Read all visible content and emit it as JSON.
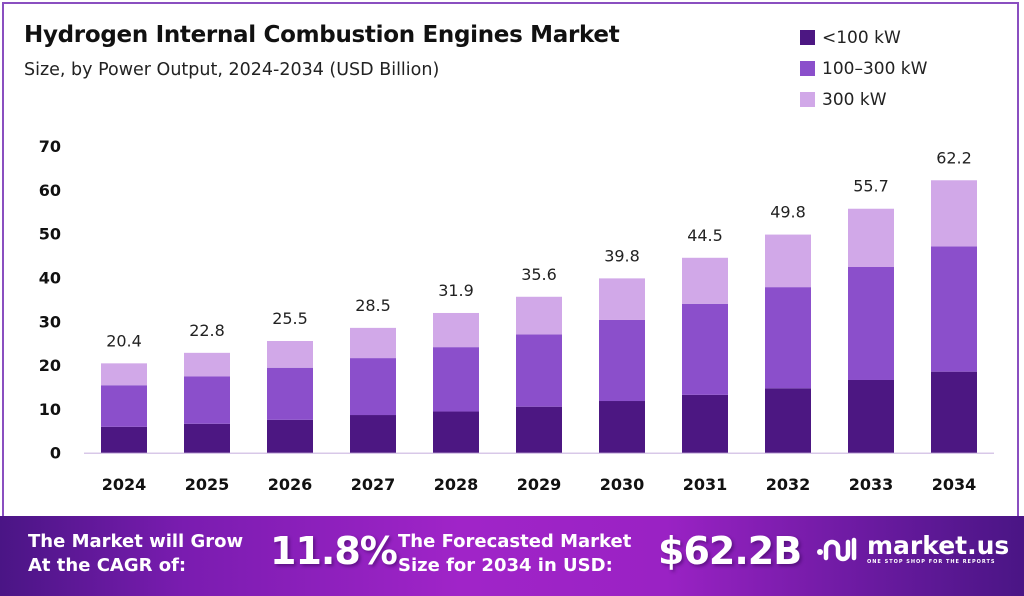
{
  "header": {
    "title": "Hydrogen Internal Combustion Engines Market",
    "subtitle": "Size, by Power Output, 2024-2034 (USD Billion)"
  },
  "colors": {
    "lt100": "#4c1782",
    "mid": "#8b4fcb",
    "gt300": "#d1a8e8",
    "axis": "#d8c8e8"
  },
  "chart_data": {
    "type": "bar",
    "stacked": true,
    "title": "Hydrogen Internal Combustion Engines Market",
    "subtitle": "Size, by Power Output, 2024-2034 (USD Billion)",
    "xlabel": "",
    "ylabel": "",
    "ylim": [
      0,
      70
    ],
    "yticks": [
      "0",
      "10",
      "20",
      "30",
      "40",
      "50",
      "60",
      "70"
    ],
    "ytick_values": [
      0,
      10,
      20,
      30,
      40,
      50,
      60,
      70
    ],
    "grid": false,
    "legend_position": "top-right",
    "categories": [
      "2024",
      "2025",
      "2026",
      "2027",
      "2028",
      "2029",
      "2030",
      "2031",
      "2032",
      "2033",
      "2034"
    ],
    "series": [
      {
        "name": "<100 kW",
        "color_key": "lt100",
        "values": [
          5.9,
          6.6,
          7.5,
          8.6,
          9.4,
          10.5,
          11.8,
          13.2,
          14.7,
          16.6,
          18.5
        ]
      },
      {
        "name": "100–300 kW",
        "color_key": "mid",
        "values": [
          9.5,
          10.8,
          11.9,
          13.0,
          14.7,
          16.5,
          18.5,
          20.8,
          23.1,
          25.8,
          28.6
        ]
      },
      {
        "name": "300 kW",
        "color_key": "gt300",
        "values": [
          5.0,
          5.4,
          6.1,
          6.9,
          7.8,
          8.6,
          9.5,
          10.5,
          12.0,
          13.3,
          15.1
        ]
      }
    ],
    "totals": [
      20.4,
      22.8,
      25.5,
      28.5,
      31.9,
      35.6,
      39.8,
      44.5,
      49.8,
      55.7,
      62.2
    ],
    "total_labels": [
      "20.4",
      "22.8",
      "25.5",
      "28.5",
      "31.9",
      "35.6",
      "39.8",
      "44.5",
      "49.8",
      "55.7",
      "62.2"
    ]
  },
  "legend": [
    {
      "label": "<100 kW",
      "color_key": "lt100"
    },
    {
      "label": "100–300 kW",
      "color_key": "mid"
    },
    {
      "label": "300 kW",
      "color_key": "gt300"
    }
  ],
  "footer": {
    "cagr_text_line1": "The Market will Grow",
    "cagr_text_line2": "At the CAGR of:",
    "cagr_value": "11.8%",
    "forecast_text_line1": "The Forecasted Market",
    "forecast_text_line2": "Size for 2034 in USD:",
    "forecast_value": "$62.2B",
    "brand_name": "market.us",
    "brand_tagline": "ONE STOP SHOP FOR THE REPORTS"
  }
}
